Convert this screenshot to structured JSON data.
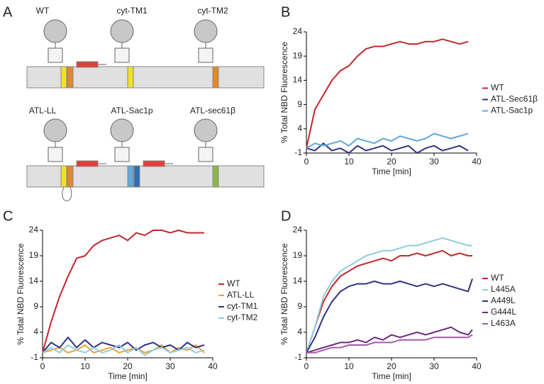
{
  "diagram": {
    "panel_label": "A",
    "constructs": [
      "WT",
      "cyt-TM1",
      "cyt-TM2",
      "ATL-LL",
      "ATL-Sac1p",
      "ATL-sec61β"
    ]
  },
  "chart_data": [
    {
      "type": "line",
      "panel_label": "B",
      "xlabel": "Time [min]",
      "ylabel": "% Total NBD Fluorescence",
      "x": [
        0,
        2,
        4,
        6,
        8,
        10,
        12,
        14,
        16,
        18,
        20,
        22,
        24,
        26,
        28,
        30,
        32,
        34,
        36,
        38
      ],
      "xlim": [
        0,
        40
      ],
      "xticks": [
        0,
        10,
        20,
        30,
        40
      ],
      "ylim": [
        -1,
        24
      ],
      "yticks": [
        -1,
        4,
        9,
        14,
        19,
        24
      ],
      "legend": "right",
      "series": [
        {
          "name": "WT",
          "color": "#c1272d",
          "values": [
            0,
            8,
            11,
            14,
            16,
            17,
            19,
            20.5,
            21,
            21,
            21.5,
            22,
            21.5,
            21.5,
            22,
            22,
            22.5,
            22,
            21.5,
            22
          ]
        },
        {
          "name": "ATL-Sec61β",
          "color": "#2e3480",
          "values": [
            0,
            -0.5,
            1,
            -0.5,
            0,
            -1,
            0.5,
            -0.5,
            0,
            0.5,
            -0.5,
            0,
            0.5,
            -1,
            0,
            0.5,
            -0.5,
            0,
            0.5,
            -0.5
          ]
        },
        {
          "name": "ATL-Sac1p",
          "color": "#5fa8d8",
          "values": [
            0,
            1,
            0.5,
            1,
            1.5,
            0.5,
            2,
            1.5,
            1,
            2,
            1.5,
            2.5,
            2,
            1.5,
            2,
            3,
            2.5,
            2,
            2.5,
            3
          ]
        }
      ]
    },
    {
      "type": "line",
      "panel_label": "C",
      "xlabel": "Time [min]",
      "ylabel": "% Total NBD Fluorescence",
      "x": [
        0,
        2,
        4,
        6,
        8,
        10,
        12,
        14,
        16,
        18,
        20,
        22,
        24,
        26,
        28,
        30,
        32,
        34,
        36,
        38
      ],
      "xlim": [
        0,
        40
      ],
      "xticks": [
        0,
        10,
        20,
        30,
        40
      ],
      "ylim": [
        -1,
        24
      ],
      "yticks": [
        -1,
        4,
        9,
        14,
        19,
        24
      ],
      "legend": "right",
      "series": [
        {
          "name": "WT",
          "color": "#c1272d",
          "values": [
            0,
            6,
            11,
            15,
            18.5,
            19,
            21,
            22,
            22.5,
            23,
            22,
            23.5,
            23,
            24,
            24,
            23.5,
            24,
            23.5,
            23.5,
            23.5
          ]
        },
        {
          "name": "ATL-LL",
          "color": "#f0a030",
          "values": [
            0,
            0.5,
            1,
            0,
            0.5,
            1.5,
            0,
            0.5,
            1,
            0,
            0.5,
            1,
            0,
            0.5,
            1.5,
            0,
            1,
            0.5,
            1.5,
            0
          ]
        },
        {
          "name": "cyt-TM1",
          "color": "#2e3480",
          "values": [
            0,
            2,
            1,
            3,
            1,
            2.5,
            1,
            2,
            1.5,
            1,
            2,
            0.5,
            1.5,
            2,
            1,
            1.5,
            0.5,
            2,
            1,
            1.5
          ]
        },
        {
          "name": "cyt-TM2",
          "color": "#8fcce0",
          "values": [
            0,
            1,
            0,
            1.5,
            0.5,
            0,
            1,
            0,
            0.5,
            1.5,
            0,
            1,
            -0.5,
            0.5,
            1,
            0,
            0.5,
            1,
            0,
            0.5
          ]
        }
      ]
    },
    {
      "type": "line",
      "panel_label": "D",
      "xlabel": "Time [min]",
      "ylabel": "% Total NBD Fluorescence",
      "x": [
        0,
        2,
        4,
        6,
        8,
        10,
        12,
        14,
        16,
        18,
        20,
        22,
        24,
        26,
        28,
        30,
        32,
        34,
        36,
        38,
        39
      ],
      "xlim": [
        0,
        40
      ],
      "xticks": [
        0,
        10,
        20,
        30,
        40
      ],
      "ylim": [
        -1,
        24
      ],
      "yticks": [
        -1,
        4,
        9,
        14,
        19,
        24
      ],
      "legend": "right",
      "series": [
        {
          "name": "WT",
          "color": "#c1272d",
          "values": [
            0,
            5,
            10,
            13,
            15,
            16,
            17,
            17.5,
            18,
            18.5,
            18,
            19,
            19,
            19.5,
            19,
            19.5,
            20,
            19,
            19.5,
            19,
            19
          ]
        },
        {
          "name": "L445A",
          "color": "#8fcce0",
          "values": [
            0,
            5,
            11,
            14,
            16,
            17,
            18,
            19,
            19.5,
            20,
            20,
            20.5,
            21,
            21,
            21.5,
            22,
            22.5,
            22,
            21.5,
            21,
            21
          ]
        },
        {
          "name": "A449L",
          "color": "#2e3480",
          "values": [
            0,
            3,
            7,
            10,
            12,
            13,
            13.5,
            13.5,
            14,
            13.5,
            13.5,
            14,
            13.5,
            13,
            13.5,
            13,
            13.5,
            13,
            12.5,
            12,
            14.5
          ]
        },
        {
          "name": "G444L",
          "color": "#6a2a7a",
          "values": [
            0,
            0.5,
            1,
            1.5,
            2,
            2,
            2.5,
            2,
            3,
            2.5,
            3.5,
            3,
            3.5,
            4,
            3.5,
            4,
            4.5,
            5,
            4,
            3.5,
            4.5
          ]
        },
        {
          "name": "L463A",
          "color": "#a45aa8",
          "values": [
            0,
            0,
            0.5,
            1,
            1,
            1.5,
            1.5,
            1.5,
            2,
            2,
            2,
            2.5,
            2.5,
            2.5,
            2.5,
            3,
            3,
            3,
            3,
            3,
            3.5
          ]
        }
      ]
    }
  ]
}
